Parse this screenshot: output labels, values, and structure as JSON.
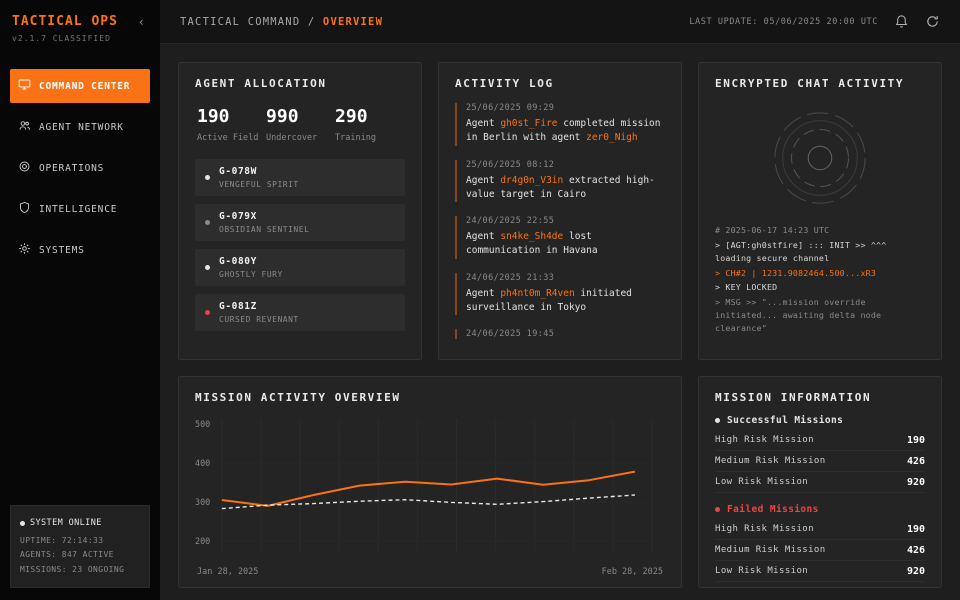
{
  "colors": {
    "accent": "#f97316",
    "danger": "#ef4444",
    "background": "#1e1e1e",
    "card": "#242424"
  },
  "sidebar": {
    "title": "TACTICAL OPS",
    "subtitle": "v2.1.7 CLASSIFIED",
    "collapse_glyph": "‹",
    "items": [
      {
        "label": "COMMAND CENTER",
        "active": true
      },
      {
        "label": "AGENT NETWORK",
        "active": false
      },
      {
        "label": "OPERATIONS",
        "active": false
      },
      {
        "label": "INTELLIGENCE",
        "active": false
      },
      {
        "label": "SYSTEMS",
        "active": false
      }
    ],
    "status": {
      "title": "SYSTEM ONLINE",
      "uptime": "UPTIME: 72:14:33",
      "agents": "AGENTS: 847 ACTIVE",
      "missions": "MISSIONS: 23 ONGOING"
    }
  },
  "header": {
    "breadcrumb_root": "TACTICAL COMMAND /",
    "breadcrumb_current": "OVERVIEW",
    "last_update": "LAST UPDATE: 05/06/2025 20:00 UTC"
  },
  "agent_allocation": {
    "title": "AGENT ALLOCATION",
    "stats": [
      {
        "value": "190",
        "label": "Active Field"
      },
      {
        "value": "990",
        "label": "Undercover"
      },
      {
        "value": "290",
        "label": "Training"
      }
    ],
    "agents": [
      {
        "code": "G-078W",
        "name": "VENGEFUL SPIRIT",
        "status": "white"
      },
      {
        "code": "G-079X",
        "name": "OBSIDIAN SENTINEL",
        "status": "gray"
      },
      {
        "code": "G-080Y",
        "name": "GHOSTLY FURY",
        "status": "white"
      },
      {
        "code": "G-081Z",
        "name": "CURSED REVENANT",
        "status": "red"
      }
    ]
  },
  "activity_log": {
    "title": "ACTIVITY LOG",
    "entries": [
      {
        "time": "25/06/2025 09:29",
        "prefix": "Agent ",
        "agent": "gh0st_Fire",
        "middle": " completed mission in Berlin with agent ",
        "agent2": "zer0_Nigh"
      },
      {
        "time": "25/06/2025 08:12",
        "prefix": "Agent ",
        "agent": "dr4g0n_V3in",
        "middle": " extracted high-value target in Cairo",
        "agent2": ""
      },
      {
        "time": "24/06/2025 22:55",
        "prefix": "Agent ",
        "agent": "sn4ke_Sh4de",
        "middle": " lost communication in Havana",
        "agent2": ""
      },
      {
        "time": "24/06/2025 21:33",
        "prefix": "Agent ",
        "agent": "ph4nt0m_R4ven",
        "middle": " initiated surveillance in Tokyo",
        "agent2": ""
      },
      {
        "time": "24/06/2025 19:45",
        "prefix": "",
        "agent": "",
        "middle": "",
        "agent2": ""
      }
    ]
  },
  "chat": {
    "title": "ENCRYPTED CHAT ACTIVITY",
    "lines": [
      {
        "text": "# 2025-06-17 14:23 UTC"
      },
      {
        "text": "> [AGT:gh0stfire] ::: INIT >> ^^^ loading secure channel"
      },
      {
        "text": "> CH#2 | 1231.9082464.500...xR3"
      },
      {
        "text": "> KEY LOCKED"
      },
      {
        "text": "> MSG >> \"...mission override initiated... awaiting delta node clearance\""
      }
    ]
  },
  "chart_data": {
    "type": "line",
    "title": "MISSION ACTIVITY OVERVIEW",
    "x_labels": [
      "Jan 28, 2025",
      "Feb 28, 2025"
    ],
    "y_ticks": [
      500,
      400,
      300,
      200
    ],
    "ylim": [
      200,
      500
    ],
    "grid": true,
    "legend_position": "none",
    "series": [
      {
        "name": "missions-primary",
        "color": "#f97316",
        "style": "solid",
        "values": [
          305,
          290,
          318,
          342,
          352,
          345,
          360,
          344,
          356,
          378
        ]
      },
      {
        "name": "missions-secondary",
        "color": "#e8e8e8",
        "style": "dashed",
        "values": [
          283,
          292,
          296,
          302,
          306,
          299,
          294,
          301,
          310,
          318
        ]
      }
    ]
  },
  "mission_info": {
    "title": "MISSION INFORMATION",
    "sections": [
      {
        "label": "Successful Missions",
        "rows": [
          {
            "label": "High Risk Mission",
            "value": "190"
          },
          {
            "label": "Medium Risk Mission",
            "value": "426"
          },
          {
            "label": "Low Risk Mission",
            "value": "920"
          }
        ]
      },
      {
        "label": "Failed Missions",
        "rows": [
          {
            "label": "High Risk Mission",
            "value": "190"
          },
          {
            "label": "Medium Risk Mission",
            "value": "426"
          },
          {
            "label": "Low Risk Mission",
            "value": "920"
          }
        ]
      }
    ]
  }
}
